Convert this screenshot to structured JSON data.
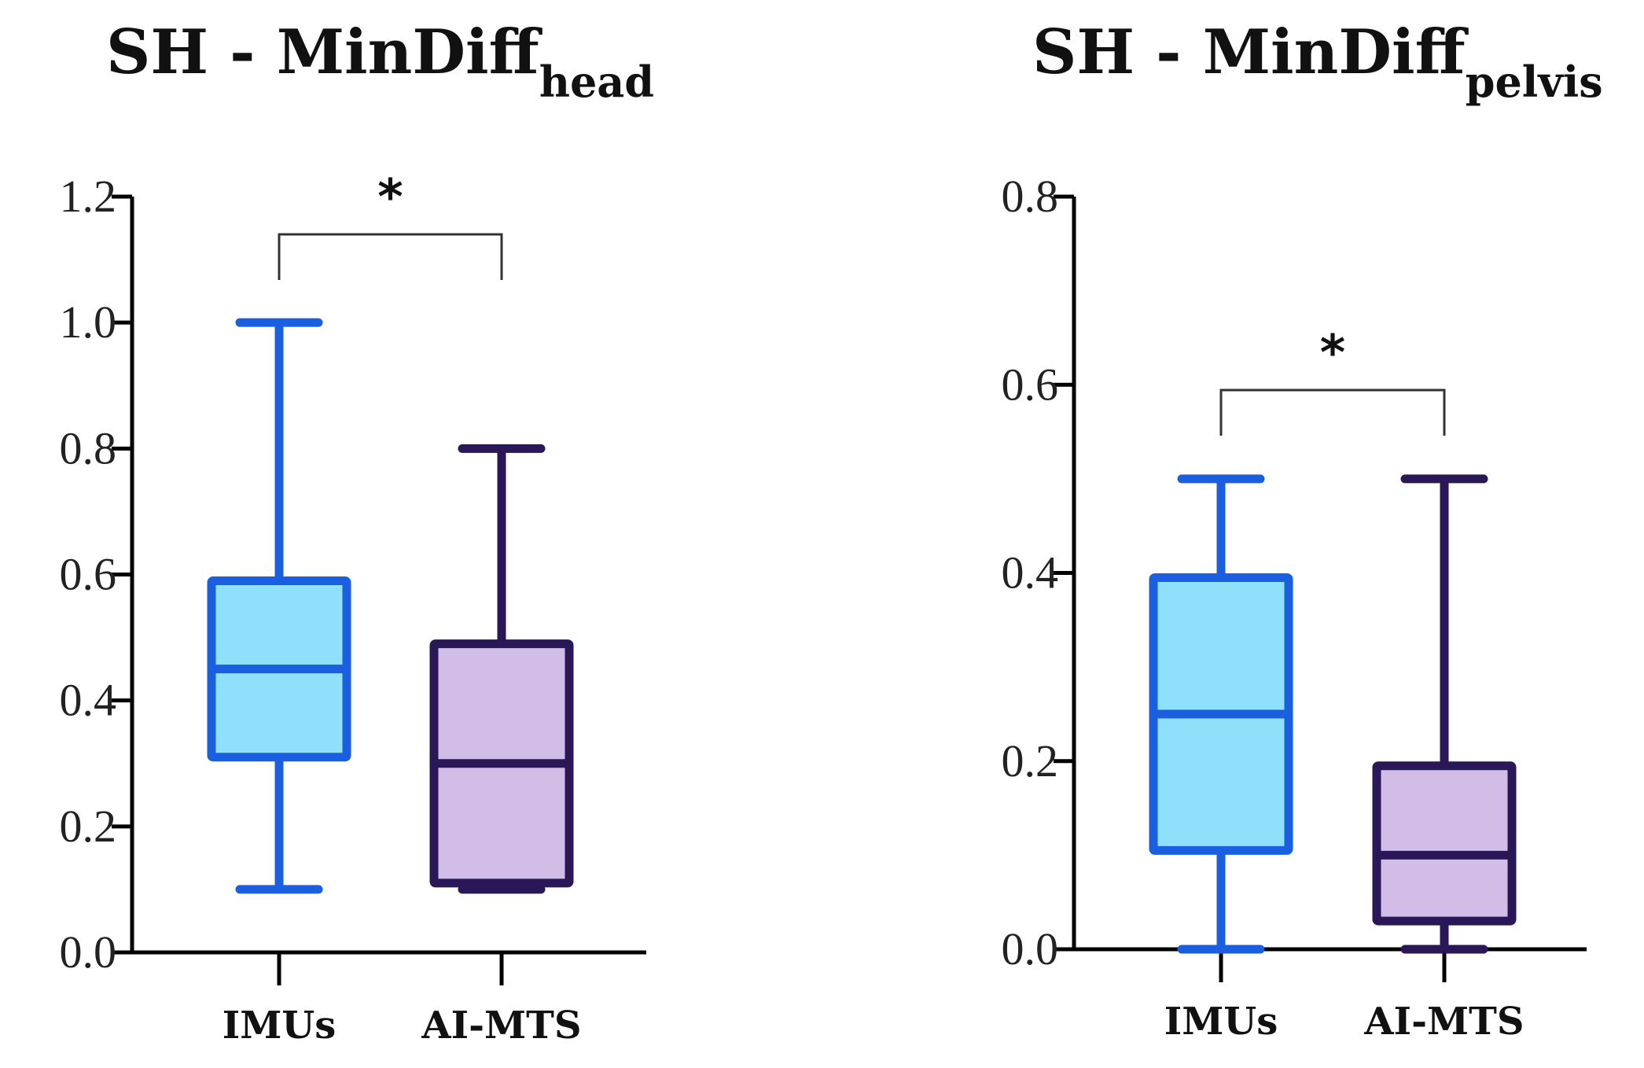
{
  "chart_data": [
    {
      "type": "box",
      "title_main": "SH - MinDiff",
      "title_sub": "head",
      "categories": [
        "IMUs",
        "AI-MTS"
      ],
      "ylim": [
        0,
        1.2
      ],
      "yticks": [
        "0.0",
        "0.2",
        "0.4",
        "0.6",
        "0.8",
        "1.0",
        "1.2"
      ],
      "series": [
        {
          "name": "IMUs",
          "min": 0.1,
          "q1": 0.31,
          "median": 0.45,
          "q3": 0.59,
          "max": 1.0,
          "stroke": "#1a5fe0",
          "fill": "#8fe0fb"
        },
        {
          "name": "AI-MTS",
          "min": 0.1,
          "q1": 0.11,
          "median": 0.3,
          "q3": 0.49,
          "max": 0.8,
          "stroke": "#2a1757",
          "fill": "#d2bde6"
        }
      ],
      "significance": "*"
    },
    {
      "type": "box",
      "title_main": "SH - MinDiff",
      "title_sub": "pelvis",
      "categories": [
        "IMUs",
        "AI-MTS"
      ],
      "ylim": [
        0,
        0.8
      ],
      "yticks": [
        "0.0",
        "0.2",
        "0.4",
        "0.6",
        "0.8"
      ],
      "series": [
        {
          "name": "IMUs",
          "min": 0.0,
          "q1": 0.105,
          "median": 0.25,
          "q3": 0.395,
          "max": 0.5,
          "stroke": "#1a5fe0",
          "fill": "#8fe0fb"
        },
        {
          "name": "AI-MTS",
          "min": 0.0,
          "q1": 0.03,
          "median": 0.1,
          "q3": 0.195,
          "max": 0.5,
          "stroke": "#2a1757",
          "fill": "#d2bde6"
        }
      ],
      "significance": "*"
    }
  ]
}
